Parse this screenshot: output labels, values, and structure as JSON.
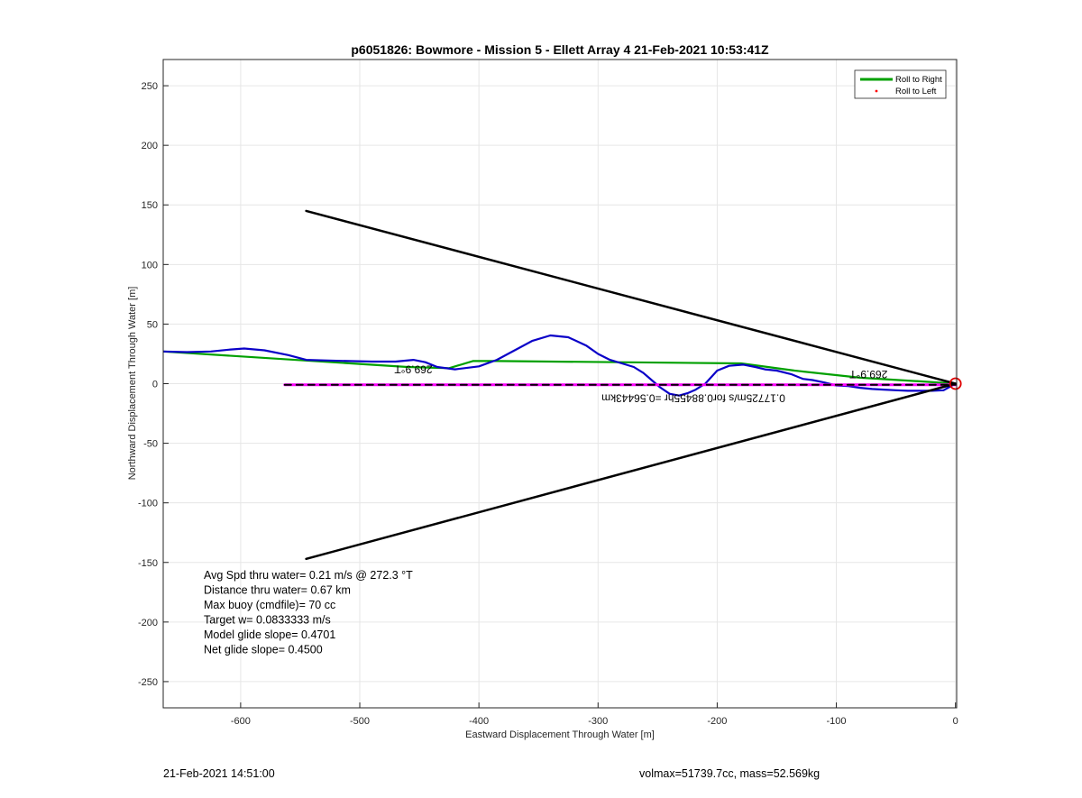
{
  "chart_data": {
    "type": "line",
    "title": "p6051826: Bowmore - Mission 5 - Ellett Array 4 21-Feb-2021 10:53:41Z",
    "xlabel": "Eastward Displacement Through Water [m]",
    "ylabel": "Northward Displacement Through Water [m]",
    "xlim": [
      -665,
      1
    ],
    "ylim": [
      -272,
      272
    ],
    "xticks": [
      -600,
      -500,
      -400,
      -300,
      -200,
      -100,
      0
    ],
    "yticks": [
      250,
      200,
      150,
      100,
      50,
      0,
      -50,
      -100,
      -150,
      -200,
      -250
    ],
    "grid": true,
    "legend_placement": "top-right",
    "legend": [
      {
        "label": "Roll to Right",
        "color": "#00a000",
        "marker": "line"
      },
      {
        "label": "Roll to Left",
        "color": "#ff0000",
        "marker": "dot"
      }
    ],
    "series": [
      {
        "name": "Roll to Right",
        "color": "#00a000",
        "x": [
          -665,
          -460,
          -425,
          -405,
          -385,
          -180,
          -135,
          -80,
          -30,
          0
        ],
        "y": [
          27,
          14,
          13,
          19,
          19,
          17,
          11,
          5,
          2,
          0
        ]
      },
      {
        "color": "#0a00c8",
        "x": [
          -665,
          -645,
          -625,
          -610,
          -597,
          -580,
          -560,
          -545,
          -530,
          -510,
          -490,
          -470,
          -455,
          -445,
          -435,
          -420,
          -400,
          -385,
          -370,
          -355,
          -340,
          -325,
          -310,
          -300,
          -290,
          -280,
          -270,
          -262,
          -255,
          -248,
          -240,
          -232,
          -225,
          -218,
          -210,
          -200,
          -190,
          -178,
          -168,
          -160,
          -150,
          -138,
          -128,
          -120,
          -110,
          -100,
          -90,
          -80,
          -70,
          -60,
          -50,
          -40,
          -30,
          -20,
          -10,
          0
        ],
        "y": [
          27,
          26.5,
          27,
          28.5,
          29.5,
          28,
          24,
          20,
          19.5,
          19,
          18.5,
          18.5,
          20,
          18,
          14,
          12,
          14.5,
          20,
          28,
          36,
          40.5,
          39,
          32,
          25,
          20,
          17,
          14,
          9,
          3,
          -3,
          -8.5,
          -10,
          -8,
          -5,
          0,
          11,
          15,
          16,
          14,
          12,
          11,
          8,
          4,
          3,
          1,
          -1.5,
          -2,
          -3.5,
          -4.5,
          -5,
          -5.5,
          -6,
          -6,
          -6,
          -5.5,
          0
        ]
      },
      {
        "color": "#ff00ff",
        "x": [
          -563,
          0
        ],
        "y": [
          -1,
          -1
        ]
      },
      {
        "color": "#000000",
        "x": [
          -563,
          0
        ],
        "y": [
          -1,
          -1
        ]
      },
      {
        "color": "#000000",
        "x": [
          -545,
          0,
          -545
        ],
        "y": [
          145,
          0,
          -147
        ]
      }
    ],
    "annotations": [
      {
        "text": "269.9°T",
        "x": -455,
        "y": 15,
        "rotation": 180
      },
      {
        "text": "269.9°T",
        "x": -73,
        "y": 11,
        "rotation": 180
      },
      {
        "text": "0.17725m/s for0.88455hr =0.56443km",
        "x": -220,
        "y": -9,
        "rotation": 180
      }
    ],
    "end_marker": {
      "x": 0,
      "y": 0,
      "color": "#e00000"
    },
    "stats": [
      "Avg Spd thru water=  0.21 m/s @ 272.3 °T",
      "Distance thru water=  0.67 km",
      "Max buoy (cmdfile)= 70 cc",
      "Target w= 0.0833333 m/s",
      "Model glide slope= 0.4701",
      "Net glide slope= 0.4500"
    ]
  },
  "footer": {
    "left": "21-Feb-2021 14:51:00",
    "right": "volmax=51739.7cc, mass=52.569kg"
  }
}
